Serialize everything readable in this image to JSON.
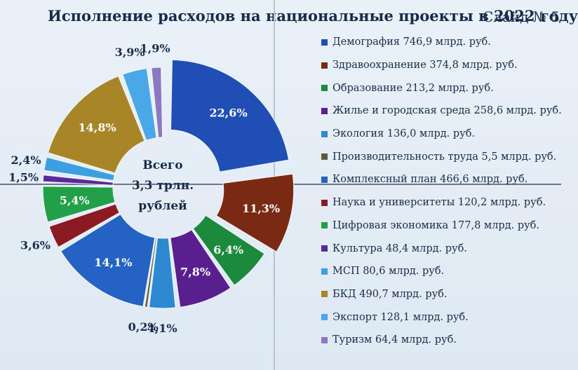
{
  "header": {
    "title": "Исполнение расходов на национальные проекты в 2022 году",
    "slide": "Слайд № 5"
  },
  "center": {
    "line1": "Всего",
    "line2": "3,3 трлн.",
    "line3": "рублей"
  },
  "chart_data": {
    "type": "pie",
    "title": "Исполнение расходов на национальные проекты в 2022 году",
    "slices": [
      {
        "label": "Демография 746,9 млрд. руб.",
        "value": 22.6,
        "pct_label": "22,6%",
        "color": "#1f4fb5"
      },
      {
        "label": "Здравоохранение 374,8 млрд. руб.",
        "value": 11.3,
        "pct_label": "11,3%",
        "color": "#7a2a12"
      },
      {
        "label": "Образование 213,2 млрд. руб.",
        "value": 6.4,
        "pct_label": "6,4%",
        "color": "#1c8a3c"
      },
      {
        "label": "Жилье и городская среда 258,6 млрд. руб.",
        "value": 7.8,
        "pct_label": "7,8%",
        "color": "#5a1f8e"
      },
      {
        "label": "Экология 136,0 млрд. руб.",
        "value": 4.1,
        "pct_label": "4,1%",
        "color": "#2e8ad0"
      },
      {
        "label": "Производительность труда 5,5 млрд. руб.",
        "value": 0.2,
        "pct_label": "0,2%",
        "color": "#5b5a3a"
      },
      {
        "label": "Комплексный план 466,6 млрд. руб.",
        "value": 14.1,
        "pct_label": "14,1%",
        "color": "#2563c2"
      },
      {
        "label": "Наука и университеты 120,2 млрд. руб.",
        "value": 3.6,
        "pct_label": "3,6%",
        "color": "#8b1a22"
      },
      {
        "label": "Цифровая экономика 177,8 млрд. руб.",
        "value": 5.4,
        "pct_label": "5,4%",
        "color": "#22a047"
      },
      {
        "label": "Культура 48,4 млрд. руб.",
        "value": 1.5,
        "pct_label": "1,5%",
        "color": "#5b2a9a"
      },
      {
        "label": "МСП 80,6 млрд. руб.",
        "value": 2.4,
        "pct_label": "2,4%",
        "color": "#3aa0e0"
      },
      {
        "label": "БКД 490,7 млрд. руб.",
        "value": 14.8,
        "pct_label": "14,8%",
        "color": "#a88526"
      },
      {
        "label": "Экспорт 128,1 млрд. руб.",
        "value": 3.9,
        "pct_label": "3,9%",
        "color": "#4aa8e8"
      },
      {
        "label": "Туризм 64,4 млрд. руб.",
        "value": 1.9,
        "pct_label": "1,9%",
        "color": "#8a78c0"
      }
    ],
    "legend": "right"
  }
}
